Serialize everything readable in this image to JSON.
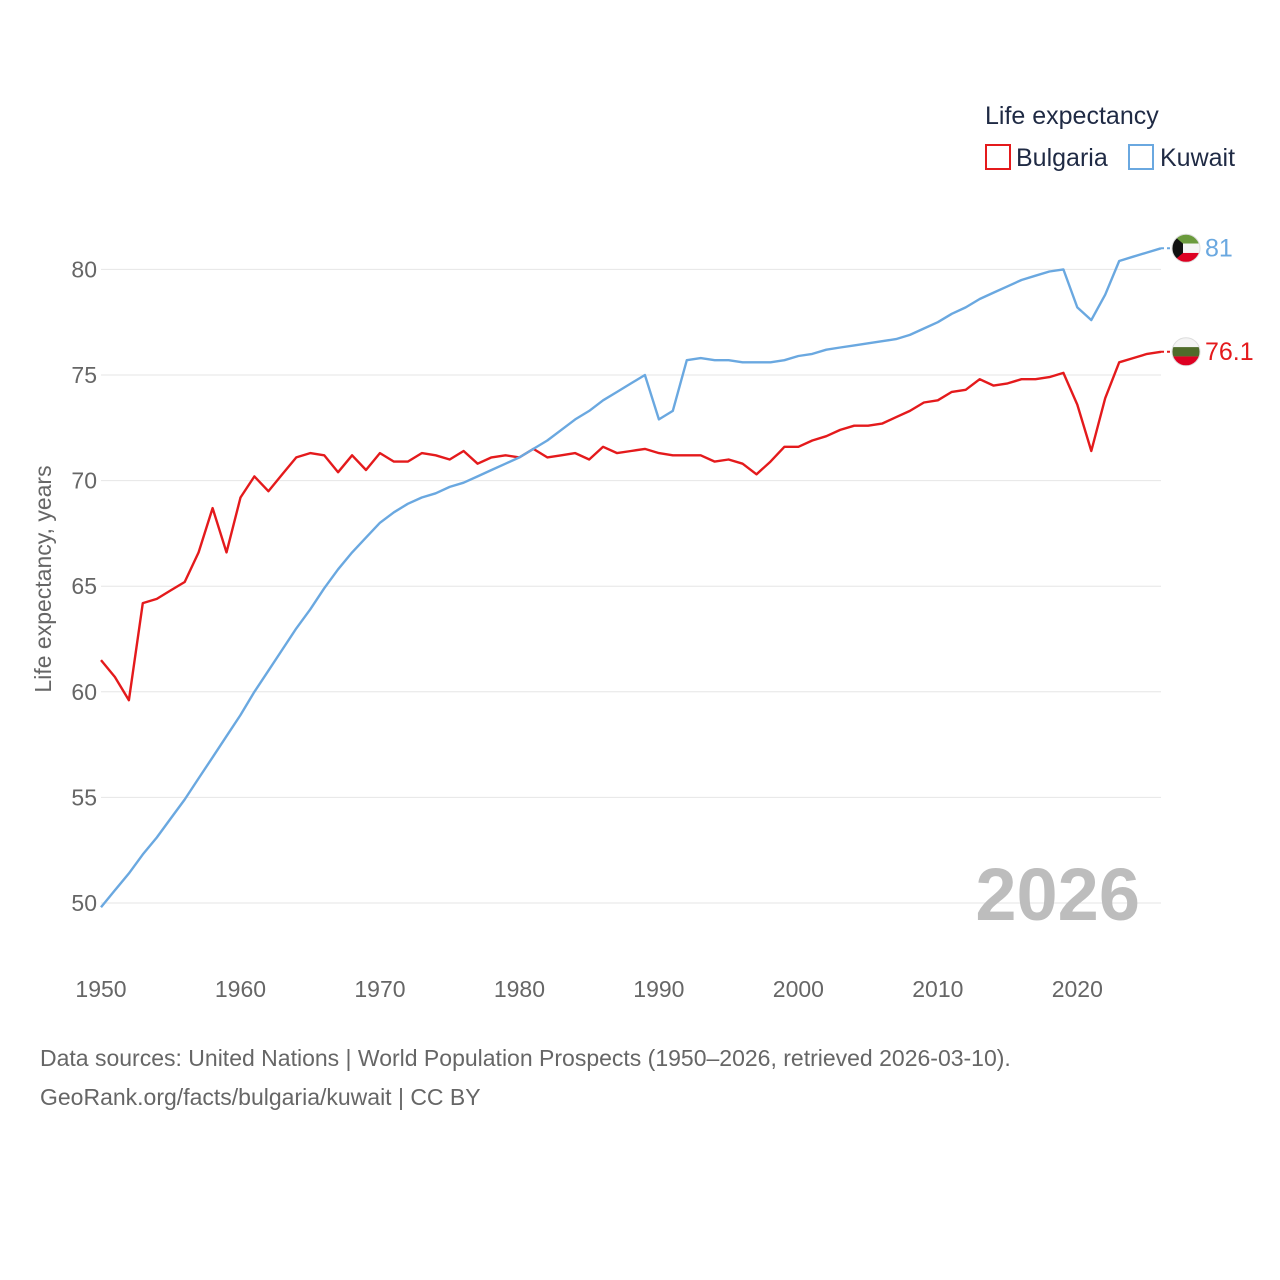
{
  "chart_data": {
    "type": "line",
    "ylabel": "Life expectancy, years",
    "ylim": [
      48.5,
      82.5
    ],
    "xlim": [
      1950,
      2026
    ],
    "yticks": [
      50,
      55,
      60,
      65,
      70,
      75,
      80
    ],
    "xticks": [
      1950,
      1960,
      1970,
      1980,
      1990,
      2000,
      2010,
      2020
    ],
    "legend_title": "Life expectancy",
    "legend_position": "top-right",
    "year_label": "2026",
    "series": [
      {
        "name": "Bulgaria",
        "color": "#e41a1c",
        "end_label": "76.1",
        "x": [
          1950,
          1951,
          1952,
          1953,
          1954,
          1955,
          1956,
          1957,
          1958,
          1959,
          1960,
          1961,
          1962,
          1963,
          1964,
          1965,
          1966,
          1967,
          1968,
          1969,
          1970,
          1971,
          1972,
          1973,
          1974,
          1975,
          1976,
          1977,
          1978,
          1979,
          1980,
          1981,
          1982,
          1983,
          1984,
          1985,
          1986,
          1987,
          1988,
          1989,
          1990,
          1991,
          1992,
          1993,
          1994,
          1995,
          1996,
          1997,
          1998,
          1999,
          2000,
          2001,
          2002,
          2003,
          2004,
          2005,
          2006,
          2007,
          2008,
          2009,
          2010,
          2011,
          2012,
          2013,
          2014,
          2015,
          2016,
          2017,
          2018,
          2019,
          2020,
          2021,
          2022,
          2023,
          2024,
          2025,
          2026
        ],
        "values": [
          61.5,
          60.7,
          59.6,
          64.2,
          64.4,
          64.8,
          65.2,
          66.6,
          68.7,
          66.6,
          69.2,
          70.2,
          69.5,
          70.3,
          71.1,
          71.3,
          71.2,
          70.4,
          71.2,
          70.5,
          71.3,
          70.9,
          70.9,
          71.3,
          71.2,
          71.0,
          71.4,
          70.8,
          71.1,
          71.2,
          71.1,
          71.5,
          71.1,
          71.2,
          71.3,
          71.0,
          71.6,
          71.3,
          71.4,
          71.5,
          71.3,
          71.2,
          71.2,
          71.2,
          70.9,
          71.0,
          70.8,
          70.3,
          70.9,
          71.6,
          71.6,
          71.9,
          72.1,
          72.4,
          72.6,
          72.6,
          72.7,
          73.0,
          73.3,
          73.7,
          73.8,
          74.2,
          74.3,
          74.8,
          74.5,
          74.6,
          74.8,
          74.8,
          74.9,
          75.1,
          73.6,
          71.4,
          73.9,
          75.6,
          75.8,
          76.0,
          76.1
        ]
      },
      {
        "name": "Kuwait",
        "color": "#6aa8e0",
        "end_label": "81",
        "x": [
          1950,
          1951,
          1952,
          1953,
          1954,
          1955,
          1956,
          1957,
          1958,
          1959,
          1960,
          1961,
          1962,
          1963,
          1964,
          1965,
          1966,
          1967,
          1968,
          1969,
          1970,
          1971,
          1972,
          1973,
          1974,
          1975,
          1976,
          1977,
          1978,
          1979,
          1980,
          1981,
          1982,
          1983,
          1984,
          1985,
          1986,
          1987,
          1988,
          1989,
          1990,
          1991,
          1992,
          1993,
          1994,
          1995,
          1996,
          1997,
          1998,
          1999,
          2000,
          2001,
          2002,
          2003,
          2004,
          2005,
          2006,
          2007,
          2008,
          2009,
          2010,
          2011,
          2012,
          2013,
          2014,
          2015,
          2016,
          2017,
          2018,
          2019,
          2020,
          2021,
          2022,
          2023,
          2024,
          2025,
          2026
        ],
        "values": [
          49.8,
          50.6,
          51.4,
          52.3,
          53.1,
          54.0,
          54.9,
          55.9,
          56.9,
          57.9,
          58.9,
          60.0,
          61.0,
          62.0,
          63.0,
          63.9,
          64.9,
          65.8,
          66.6,
          67.3,
          68.0,
          68.5,
          68.9,
          69.2,
          69.4,
          69.7,
          69.9,
          70.2,
          70.5,
          70.8,
          71.1,
          71.5,
          71.9,
          72.4,
          72.9,
          73.3,
          73.8,
          74.2,
          74.6,
          75.0,
          72.9,
          73.3,
          75.7,
          75.8,
          75.7,
          75.7,
          75.6,
          75.6,
          75.6,
          75.7,
          75.9,
          76.0,
          76.2,
          76.3,
          76.4,
          76.5,
          76.6,
          76.7,
          76.9,
          77.2,
          77.5,
          77.9,
          78.2,
          78.6,
          78.9,
          79.2,
          79.5,
          79.7,
          79.9,
          80.0,
          78.2,
          77.6,
          78.8,
          80.4,
          80.6,
          80.8,
          81.0
        ]
      }
    ]
  },
  "flags": {
    "kuwait": {
      "green": "#6a9a3c",
      "white": "#f4f4f4",
      "red": "#dd0022",
      "black": "#111111"
    },
    "bulgaria": {
      "white": "#f4f4f4",
      "green": "#4f6b2a",
      "red": "#dd0022"
    }
  },
  "footer": {
    "line1": "Data sources: United Nations | World Population Prospects (1950–2026, retrieved 2026-03-10).",
    "line2": "GeoRank.org/facts/bulgaria/kuwait | CC BY"
  }
}
